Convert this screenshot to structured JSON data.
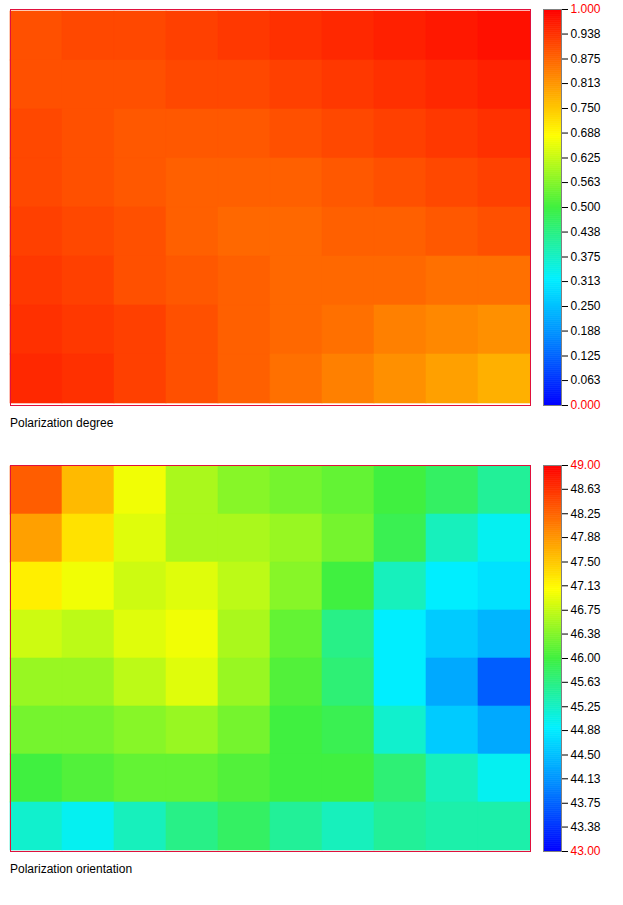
{
  "chart_data": [
    {
      "type": "heatmap",
      "title": "Polarization degree",
      "cells": [
        [
          0.9,
          0.91,
          0.91,
          0.92,
          0.93,
          0.94,
          0.95,
          0.96,
          0.97,
          0.98
        ],
        [
          0.9,
          0.9,
          0.9,
          0.91,
          0.91,
          0.92,
          0.93,
          0.94,
          0.95,
          0.96
        ],
        [
          0.91,
          0.9,
          0.89,
          0.89,
          0.89,
          0.9,
          0.91,
          0.92,
          0.93,
          0.94
        ],
        [
          0.91,
          0.9,
          0.89,
          0.88,
          0.88,
          0.88,
          0.89,
          0.9,
          0.91,
          0.92
        ],
        [
          0.92,
          0.91,
          0.9,
          0.88,
          0.87,
          0.87,
          0.88,
          0.88,
          0.89,
          0.9
        ],
        [
          0.93,
          0.92,
          0.9,
          0.89,
          0.88,
          0.87,
          0.87,
          0.87,
          0.86,
          0.86
        ],
        [
          0.94,
          0.93,
          0.92,
          0.9,
          0.88,
          0.87,
          0.86,
          0.84,
          0.83,
          0.82
        ],
        [
          0.95,
          0.94,
          0.92,
          0.9,
          0.88,
          0.86,
          0.84,
          0.82,
          0.8,
          0.78
        ]
      ],
      "colorbar_lim": [
        0,
        1
      ],
      "colorbar_ticks": [
        {
          "value": 1,
          "label": "1.000"
        },
        0.938,
        0.875,
        0.813,
        {
          "value": 0.75,
          "label": "0.750"
        },
        0.688,
        0.625,
        0.563,
        {
          "value": 0.5,
          "label": "0.500"
        },
        0.438,
        0.375,
        0.313,
        {
          "value": 0.25,
          "label": "0.250"
        },
        0.188,
        0.125,
        0.063,
        {
          "value": 0,
          "label": "0.000"
        }
      ]
    },
    {
      "type": "heatmap",
      "title": "Polarization orientation",
      "cells": [
        [
          48.3,
          47.6,
          47.0,
          46.6,
          46.4,
          46.3,
          46.2,
          46.0,
          45.8,
          45.5
        ],
        [
          47.8,
          47.3,
          46.9,
          46.6,
          46.6,
          46.5,
          46.3,
          45.9,
          45.3,
          45.0
        ],
        [
          47.2,
          47.0,
          46.8,
          46.9,
          46.7,
          46.4,
          46.0,
          45.3,
          44.9,
          44.8
        ],
        [
          46.8,
          46.7,
          46.9,
          47.0,
          46.6,
          46.2,
          45.6,
          44.9,
          44.6,
          44.4
        ],
        [
          46.5,
          46.5,
          46.7,
          46.9,
          46.5,
          46.1,
          45.7,
          44.9,
          44.3,
          43.7
        ],
        [
          46.3,
          46.3,
          46.4,
          46.5,
          46.3,
          46.0,
          45.9,
          45.2,
          44.6,
          44.3
        ],
        [
          46.0,
          46.1,
          46.2,
          46.2,
          46.1,
          46.0,
          46.0,
          45.7,
          45.3,
          45.0
        ],
        [
          45.2,
          45.0,
          45.3,
          45.6,
          45.8,
          45.5,
          45.3,
          45.5,
          45.4,
          45.4
        ]
      ],
      "colorbar_lim": [
        43,
        49
      ],
      "colorbar_ticks": [
        {
          "value": 49,
          "label": "49.00"
        },
        48.63,
        48.25,
        47.88,
        {
          "value": 47.5,
          "label": "47.50"
        },
        47.13,
        46.75,
        46.38,
        {
          "value": 46,
          "label": "46.00"
        },
        45.63,
        45.25,
        44.88,
        {
          "value": 44.5,
          "label": "44.50"
        },
        44.13,
        43.75,
        43.38,
        {
          "value": 43,
          "label": "43.00"
        }
      ]
    }
  ]
}
